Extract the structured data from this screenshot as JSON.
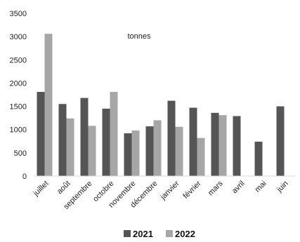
{
  "chart_data": {
    "type": "bar",
    "unit_label": "tonnes",
    "categories": [
      "juillet",
      "août",
      "septembre",
      "octobre",
      "novembre",
      "décembre",
      "janvier",
      "février",
      "mars",
      "avril",
      "mai",
      "juin"
    ],
    "series": [
      {
        "name": "2021",
        "color": "#555555",
        "values": [
          1810,
          1550,
          1680,
          1450,
          920,
          1070,
          1620,
          1470,
          1360,
          1290,
          740,
          1500
        ]
      },
      {
        "name": "2022",
        "color": "#a6a6a6",
        "values": [
          3060,
          1240,
          1080,
          1810,
          980,
          1200,
          1060,
          820,
          1310,
          null,
          null,
          null
        ]
      }
    ],
    "ylim": [
      0,
      3500
    ],
    "yticks": [
      0,
      500,
      1000,
      1500,
      2000,
      2500,
      3000,
      3500
    ],
    "grid": false,
    "legend_position": "bottom"
  }
}
